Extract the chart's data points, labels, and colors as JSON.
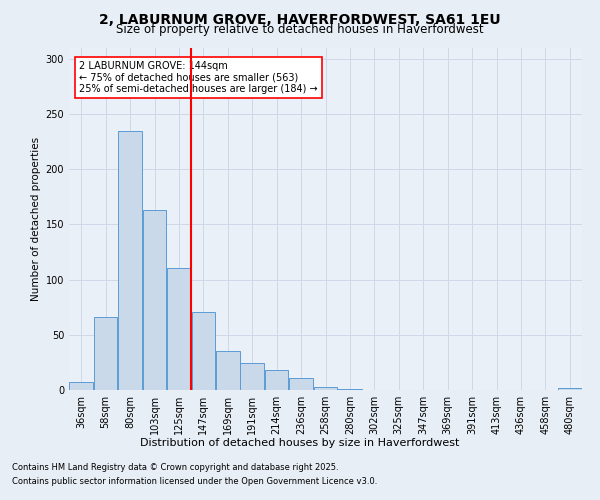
{
  "title_line1": "2, LABURNUM GROVE, HAVERFORDWEST, SA61 1EU",
  "title_line2": "Size of property relative to detached houses in Haverfordwest",
  "xlabel": "Distribution of detached houses by size in Haverfordwest",
  "ylabel": "Number of detached properties",
  "bin_labels": [
    "36sqm",
    "58sqm",
    "80sqm",
    "103sqm",
    "125sqm",
    "147sqm",
    "169sqm",
    "191sqm",
    "214sqm",
    "236sqm",
    "258sqm",
    "280sqm",
    "302sqm",
    "325sqm",
    "347sqm",
    "369sqm",
    "391sqm",
    "413sqm",
    "436sqm",
    "458sqm",
    "480sqm"
  ],
  "bar_heights": [
    7,
    66,
    234,
    163,
    110,
    71,
    35,
    24,
    18,
    11,
    3,
    1,
    0,
    0,
    0,
    0,
    0,
    0,
    0,
    0,
    2
  ],
  "bar_color": "#c9d9ea",
  "bar_edge_color": "#5b9bd5",
  "grid_color": "#d0d8e8",
  "vline_pos": 4.5,
  "vline_color": "red",
  "annotation_text": "2 LABURNUM GROVE: 144sqm\n← 75% of detached houses are smaller (563)\n25% of semi-detached houses are larger (184) →",
  "annotation_box_color": "white",
  "annotation_box_edge": "red",
  "footer_line1": "Contains HM Land Registry data © Crown copyright and database right 2025.",
  "footer_line2": "Contains public sector information licensed under the Open Government Licence v3.0.",
  "ylim": [
    0,
    310
  ],
  "yticks": [
    0,
    50,
    100,
    150,
    200,
    250,
    300
  ],
  "background_color": "#e8eef5",
  "plot_background": "#eaf0f7",
  "title1_fontsize": 10,
  "title2_fontsize": 8.5,
  "ylabel_fontsize": 7.5,
  "xlabel_fontsize": 8,
  "tick_fontsize": 7,
  "annotation_fontsize": 7,
  "footer_fontsize": 6
}
